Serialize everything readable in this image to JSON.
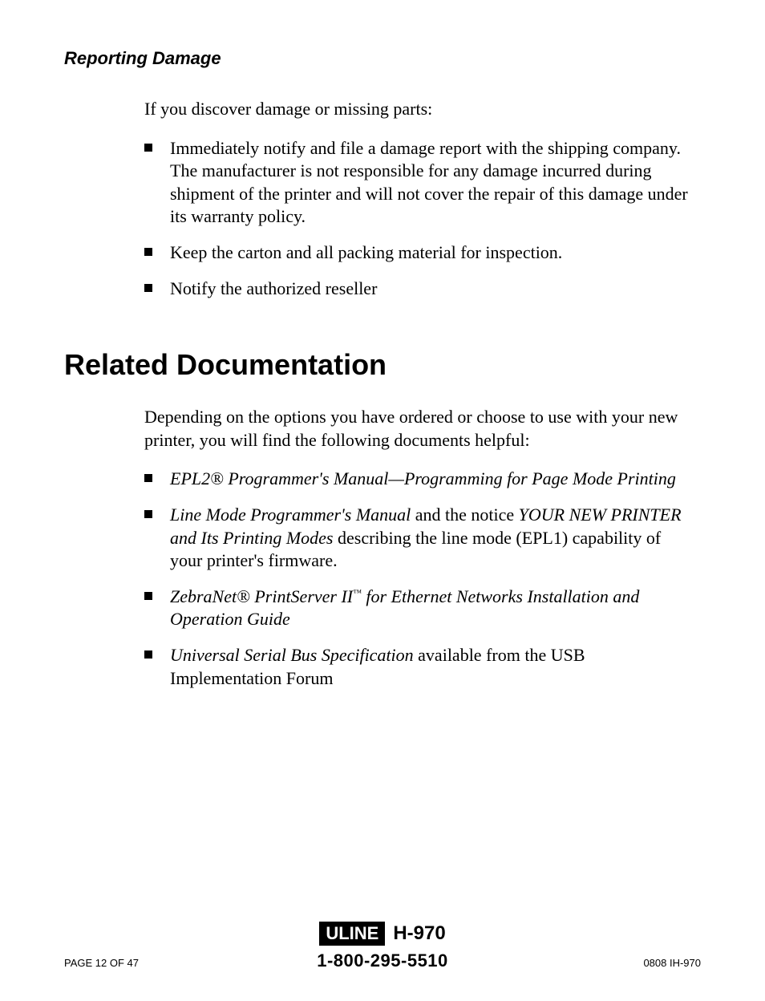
{
  "subheading": "Reporting Damage",
  "intro1": "If you discover damage or missing parts:",
  "bullets1": [
    "Immediately notify and file a damage report with the shipping company. The manufacturer is not responsible for any damage incurred during shipment of the printer and will not cover the repair of this damage under its warranty policy.",
    "Keep the carton and all packing material for inspection.",
    "Notify the authorized reseller"
  ],
  "heading": "Related Documentation",
  "intro2": "Depending on the options you have ordered or choose to use with your new printer, you will find the following documents helpful:",
  "doc1_title": "EPL2® Programmer's Manual—Programming for Page Mode Printing",
  "doc2_title1": "Line Mode Programmer's Manual",
  "doc2_mid": " and the notice ",
  "doc2_title2": "YOUR NEW PRINTER and Its Printing Modes",
  "doc2_tail": " describing the line mode (EPL1) capability of your printer's firmware.",
  "doc3_pre": "ZebraNet® PrintServer II",
  "doc3_tm": "™",
  "doc3_post": " for Ethernet Networks Installation and Operation Guide",
  "doc4_title": "Universal Serial Bus Specification",
  "doc4_tail": " available from the USB Implementation Forum",
  "footer": {
    "logo": "ULINE",
    "sku": "H-970",
    "phone": "1-800-295-5510",
    "page": "PAGE 12 OF 47",
    "docid": "0808 IH-970"
  }
}
